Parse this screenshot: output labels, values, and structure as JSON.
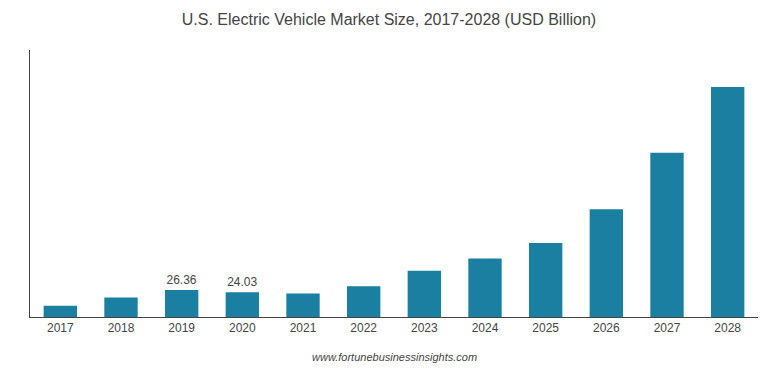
{
  "chart_data": {
    "type": "bar",
    "title": "U.S. Electric Vehicle Market Size, 2017-2028 (USD Billion)",
    "categories": [
      "2017",
      "2018",
      "2019",
      "2020",
      "2021",
      "2022",
      "2023",
      "2024",
      "2025",
      "2026",
      "2027",
      "2028"
    ],
    "values": [
      11.0,
      19.0,
      26.36,
      24.03,
      23.0,
      30.0,
      45.0,
      57.0,
      72.0,
      105.0,
      160.0,
      224.0
    ],
    "value_labels": [
      null,
      null,
      "26.36",
      "24.03",
      null,
      null,
      null,
      null,
      null,
      null,
      null,
      null
    ],
    "color": "#1a7fa0",
    "ylim": [
      0,
      260.0
    ],
    "grid": false,
    "tick_labels": "x",
    "annotations": [
      "www.fortunebusinessinsights.com"
    ]
  }
}
